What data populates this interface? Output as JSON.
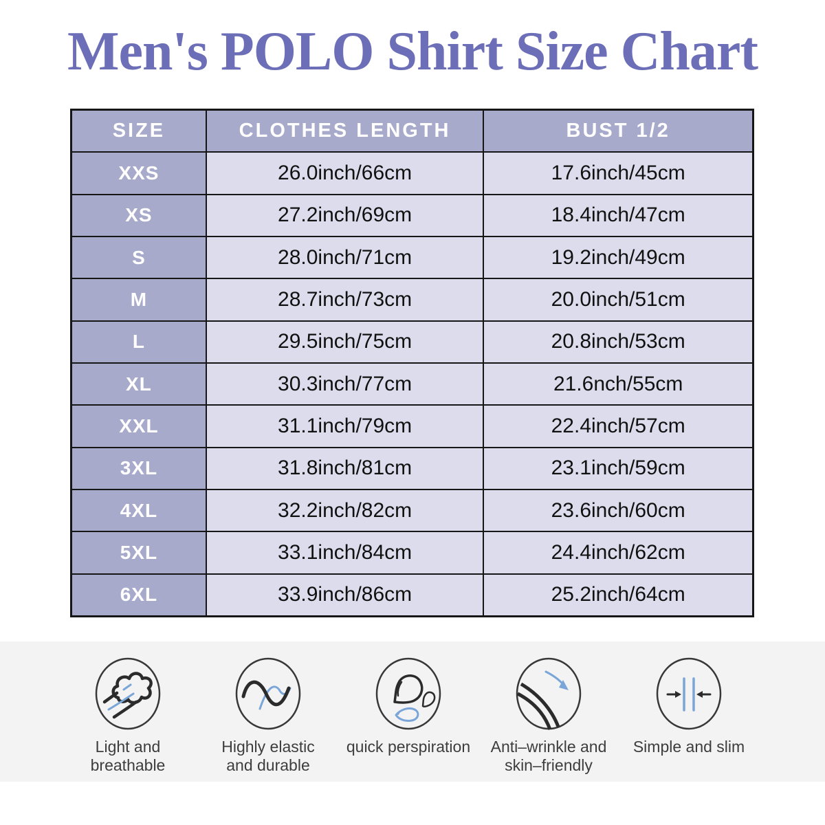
{
  "title": "Men's POLO Shirt Size Chart",
  "table": {
    "columns": [
      "SIZE",
      "CLOTHES LENGTH",
      "BUST 1/2"
    ],
    "rows": [
      {
        "size": "XXS",
        "length": "26.0inch/66cm",
        "bust": "17.6inch/45cm"
      },
      {
        "size": "XS",
        "length": "27.2inch/69cm",
        "bust": "18.4inch/47cm"
      },
      {
        "size": "S",
        "length": "28.0inch/71cm",
        "bust": "19.2inch/49cm"
      },
      {
        "size": "M",
        "length": "28.7inch/73cm",
        "bust": "20.0inch/51cm"
      },
      {
        "size": "L",
        "length": "29.5inch/75cm",
        "bust": "20.8inch/53cm"
      },
      {
        "size": "XL",
        "length": "30.3inch/77cm",
        "bust": "21.6nch/55cm"
      },
      {
        "size": "XXL",
        "length": "31.1inch/79cm",
        "bust": "22.4inch/57cm"
      },
      {
        "size": "3XL",
        "length": "31.8inch/81cm",
        "bust": "23.1inch/59cm"
      },
      {
        "size": "4XL",
        "length": "32.2inch/82cm",
        "bust": "23.6inch/60cm"
      },
      {
        "size": "5XL",
        "length": "33.1inch/84cm",
        "bust": "24.4inch/62cm"
      },
      {
        "size": "6XL",
        "length": "33.9inch/86cm",
        "bust": "25.2inch/64cm"
      }
    ]
  },
  "features": [
    {
      "icon": "breathable-wind-icon",
      "label": "Light and\nbreathable"
    },
    {
      "icon": "elastic-wave-icon",
      "label": "Highly elastic\nand durable"
    },
    {
      "icon": "perspiration-drops-icon",
      "label": "quick perspiration"
    },
    {
      "icon": "anti-wrinkle-fabric-icon",
      "label": "Anti–wrinkle and\nskin–friendly"
    },
    {
      "icon": "slim-compress-icon",
      "label": "Simple and slim"
    }
  ],
  "colors": {
    "title_text": "#6c6eb7",
    "table_header_bg": "#a8aacb",
    "table_cell_bg": "#dcdcec",
    "table_border": "#161616",
    "header_text": "#ffffff",
    "cell_text": "#111111",
    "footer_bg": "#f3f3f4",
    "footer_text": "#3d3d3d",
    "icon_stroke": "#2b2b2b",
    "icon_blue": "#7aa5d8"
  }
}
